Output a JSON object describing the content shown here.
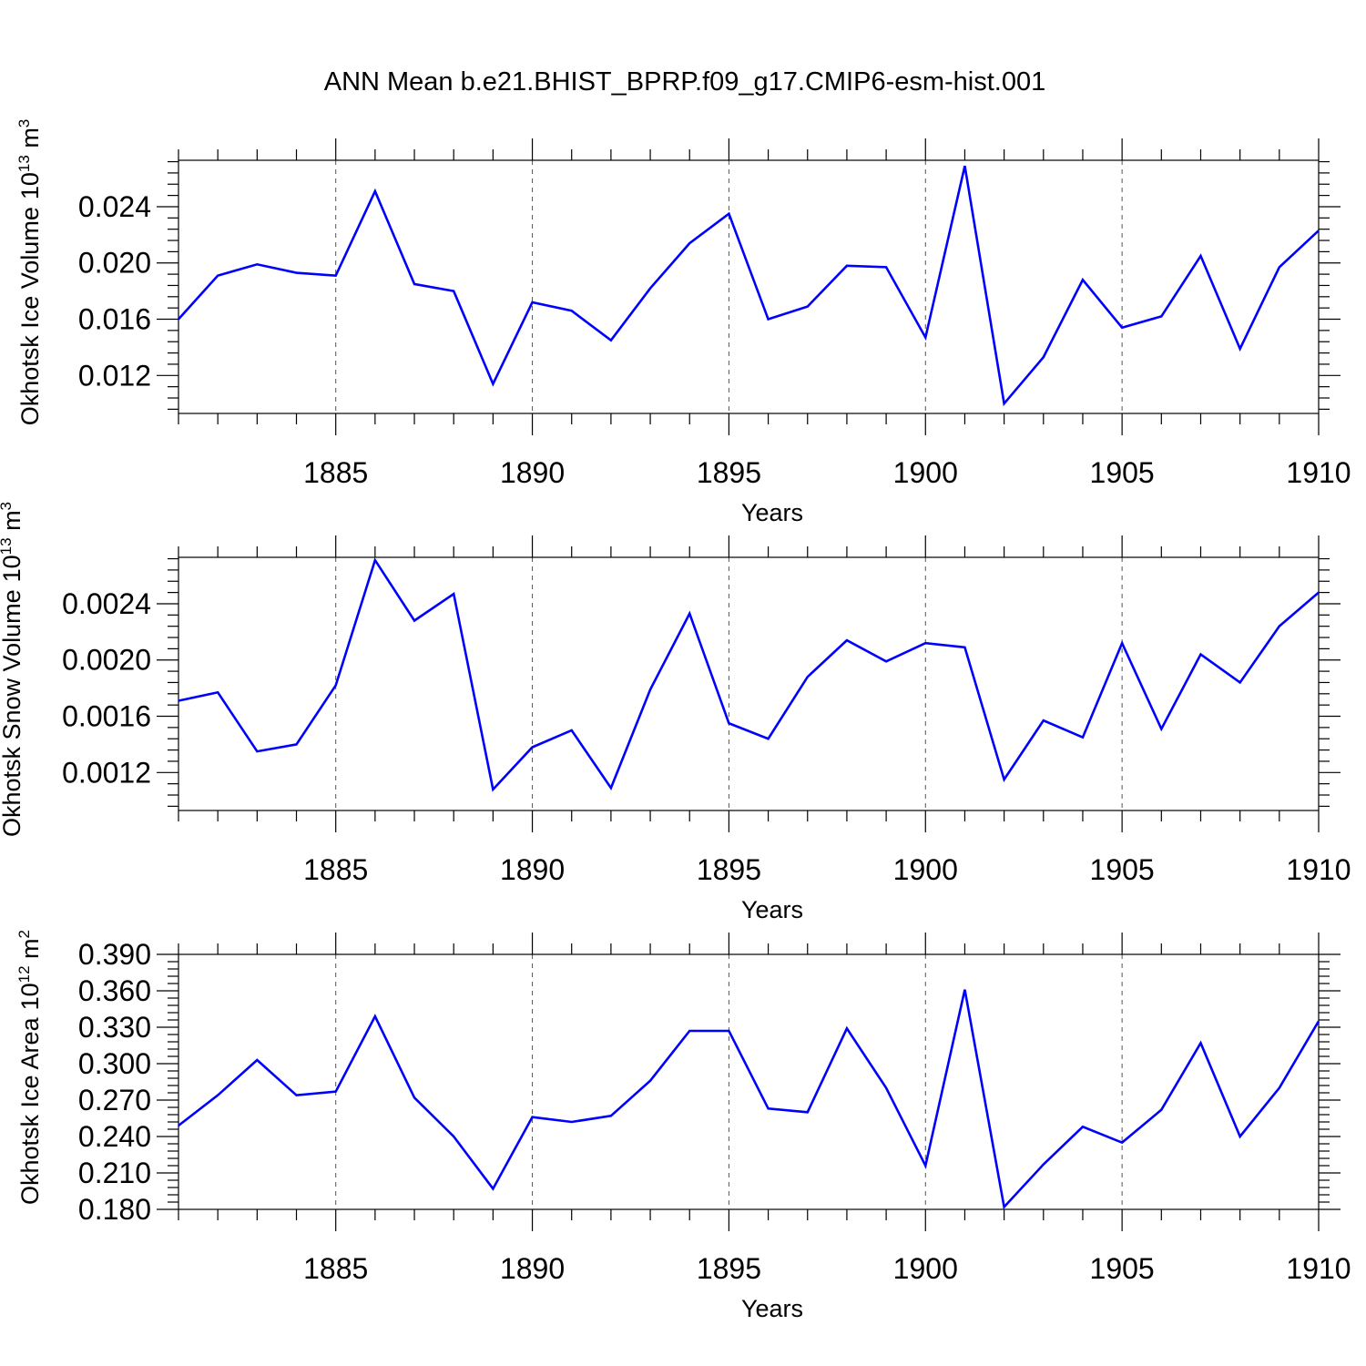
{
  "figure": {
    "title": "ANN Mean b.e21.BHIST_BPRP.f09_g17.CMIP6-esm-hist.001"
  },
  "colors": {
    "line": "#0000ff",
    "frame": "#000000",
    "grid": "#555555"
  },
  "chart_data": [
    {
      "type": "line",
      "title": "ANN Mean b.e21.BHIST_BPRP.f09_g17.CMIP6-esm-hist.001",
      "xlabel": "Years",
      "ylabel": "Okhotsk Ice Volume",
      "ylabel_unit_base": "10",
      "ylabel_unit_exp": "13",
      "ylabel_unit_tail": " m",
      "ylabel_unit_tail_exp": "3",
      "xlim": [
        1881,
        1910
      ],
      "ylim": [
        0.0093,
        0.0273
      ],
      "x_major_ticks": [
        1885,
        1890,
        1895,
        1900,
        1905,
        1910
      ],
      "x_tick_labels": [
        "1885",
        "1890",
        "1895",
        "1900",
        "1905",
        "1910"
      ],
      "y_major_ticks": [
        0.012,
        0.016,
        0.02,
        0.024
      ],
      "y_tick_labels": [
        "0.012",
        "0.016",
        "0.020",
        "0.024"
      ],
      "y_minor_step": 0.0008,
      "grid_x": true,
      "x": [
        1881,
        1882,
        1883,
        1884,
        1885,
        1886,
        1887,
        1888,
        1889,
        1890,
        1891,
        1892,
        1893,
        1894,
        1895,
        1896,
        1897,
        1898,
        1899,
        1900,
        1901,
        1902,
        1903,
        1904,
        1905,
        1906,
        1907,
        1908,
        1909,
        1910
      ],
      "series": [
        {
          "name": "Okhotsk Ice Volume",
          "values": [
            0.016,
            0.0191,
            0.0199,
            0.0193,
            0.0191,
            0.0251,
            0.0185,
            0.018,
            0.0114,
            0.0172,
            0.0166,
            0.0145,
            0.0182,
            0.0214,
            0.0235,
            0.016,
            0.0169,
            0.0198,
            0.0197,
            0.0147,
            0.0269,
            0.01,
            0.0133,
            0.0188,
            0.0154,
            0.0162,
            0.0205,
            0.0139,
            0.0197,
            0.0223
          ]
        }
      ]
    },
    {
      "type": "line",
      "xlabel": "Years",
      "ylabel": "Okhotsk Snow Volume",
      "ylabel_unit_base": "10",
      "ylabel_unit_exp": "13",
      "ylabel_unit_tail": " m",
      "ylabel_unit_tail_exp": "3",
      "xlim": [
        1881,
        1910
      ],
      "ylim": [
        0.00093,
        0.00273
      ],
      "x_major_ticks": [
        1885,
        1890,
        1895,
        1900,
        1905,
        1910
      ],
      "x_tick_labels": [
        "1885",
        "1890",
        "1895",
        "1900",
        "1905",
        "1910"
      ],
      "y_major_ticks": [
        0.0012,
        0.0016,
        0.002,
        0.0024
      ],
      "y_tick_labels": [
        "0.0012",
        "0.0016",
        "0.0020",
        "0.0024"
      ],
      "y_minor_step": 8e-05,
      "grid_x": true,
      "x": [
        1881,
        1882,
        1883,
        1884,
        1885,
        1886,
        1887,
        1888,
        1889,
        1890,
        1891,
        1892,
        1893,
        1894,
        1895,
        1896,
        1897,
        1898,
        1899,
        1900,
        1901,
        1902,
        1903,
        1904,
        1905,
        1906,
        1907,
        1908,
        1909,
        1910
      ],
      "series": [
        {
          "name": "Okhotsk Snow Volume",
          "values": [
            0.00171,
            0.00177,
            0.00135,
            0.0014,
            0.00182,
            0.00271,
            0.00228,
            0.00247,
            0.00108,
            0.00138,
            0.0015,
            0.00109,
            0.00179,
            0.00233,
            0.00155,
            0.00144,
            0.00188,
            0.00214,
            0.00199,
            0.00212,
            0.00209,
            0.00115,
            0.00157,
            0.00145,
            0.00212,
            0.00151,
            0.00204,
            0.00184,
            0.00224,
            0.00248
          ]
        }
      ]
    },
    {
      "type": "line",
      "xlabel": "Years",
      "ylabel": "Okhotsk Ice Area",
      "ylabel_unit_base": "10",
      "ylabel_unit_exp": "12",
      "ylabel_unit_tail": " m",
      "ylabel_unit_tail_exp": "2",
      "xlim": [
        1881,
        1910
      ],
      "ylim": [
        0.18,
        0.39
      ],
      "x_major_ticks": [
        1885,
        1890,
        1895,
        1900,
        1905,
        1910
      ],
      "x_tick_labels": [
        "1885",
        "1890",
        "1895",
        "1900",
        "1905",
        "1910"
      ],
      "y_major_ticks": [
        0.18,
        0.21,
        0.24,
        0.27,
        0.3,
        0.33,
        0.36,
        0.39
      ],
      "y_tick_labels": [
        "0.180",
        "0.210",
        "0.240",
        "0.270",
        "0.300",
        "0.330",
        "0.360",
        "0.390"
      ],
      "y_minor_step": 0.006,
      "grid_x": true,
      "x": [
        1881,
        1882,
        1883,
        1884,
        1885,
        1886,
        1887,
        1888,
        1889,
        1890,
        1891,
        1892,
        1893,
        1894,
        1895,
        1896,
        1897,
        1898,
        1899,
        1900,
        1901,
        1902,
        1903,
        1904,
        1905,
        1906,
        1907,
        1908,
        1909,
        1910
      ],
      "series": [
        {
          "name": "Okhotsk Ice Area",
          "values": [
            0.249,
            0.274,
            0.303,
            0.274,
            0.277,
            0.339,
            0.272,
            0.24,
            0.197,
            0.256,
            0.252,
            0.257,
            0.286,
            0.327,
            0.327,
            0.263,
            0.26,
            0.329,
            0.28,
            0.216,
            0.361,
            0.182,
            0.217,
            0.248,
            0.235,
            0.262,
            0.317,
            0.24,
            0.28,
            0.335
          ]
        }
      ]
    }
  ]
}
